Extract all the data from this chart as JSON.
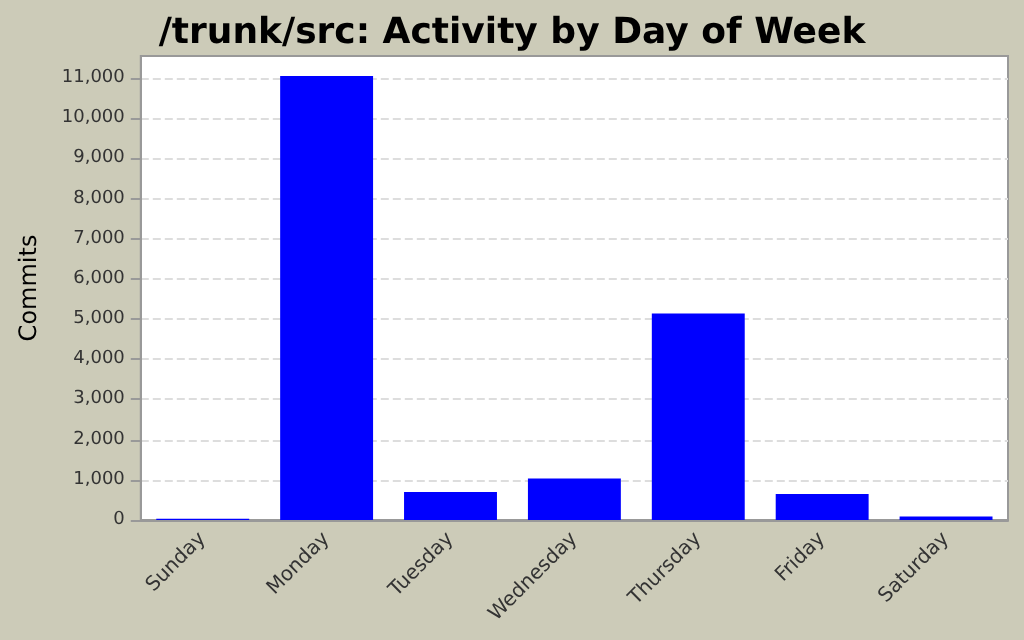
{
  "chart_data": {
    "type": "bar",
    "title": "/trunk/src: Activity by Day of Week",
    "ylabel": "Commits",
    "categories": [
      "Sunday",
      "Monday",
      "Tuesday",
      "Wednesday",
      "Thursday",
      "Friday",
      "Saturday"
    ],
    "values": [
      30,
      11050,
      700,
      1030,
      5140,
      650,
      90
    ],
    "color": "#0000ff",
    "ylim": [
      0,
      11550
    ],
    "yticks": [
      0,
      {
        "value": 1000,
        "label": "1,000"
      },
      {
        "value": 2000,
        "label": "2,000"
      },
      {
        "value": 3000,
        "label": "3,000"
      },
      {
        "value": 4000,
        "label": "4,000"
      },
      {
        "value": 5000,
        "label": "5,000"
      },
      {
        "value": 6000,
        "label": "6,000"
      },
      {
        "value": 7000,
        "label": "7,000"
      },
      {
        "value": 8000,
        "label": "8,000"
      },
      {
        "value": 9000,
        "label": "9,000"
      },
      {
        "value": 10000,
        "label": "10,000"
      },
      {
        "value": 11000,
        "label": "11,000"
      }
    ],
    "grid": true
  }
}
